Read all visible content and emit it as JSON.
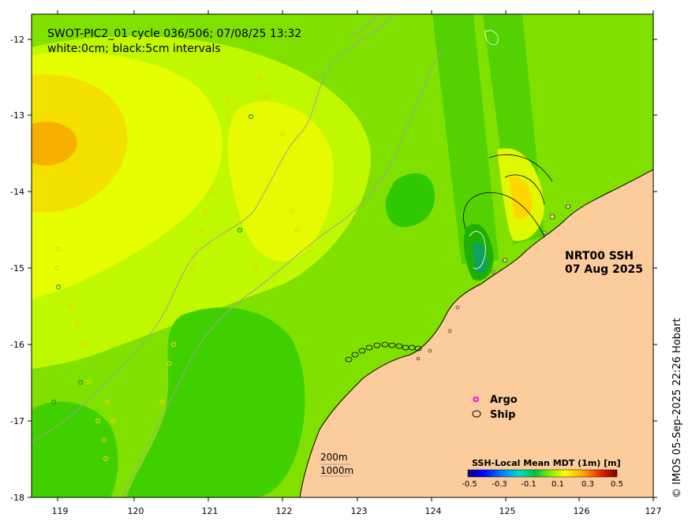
{
  "title": {
    "line1": "SWOT-PIC2_01 cycle 036/506; 07/08/25 13:32",
    "line2": "white:0cm; black:5cm intervals"
  },
  "product": {
    "line1": "NRT00 SSH",
    "line2": "07 Aug 2025"
  },
  "credit": "© IMOS 05-Sep-2025 22:26 Hobart",
  "axes": {
    "x_ticks": [
      "119",
      "120",
      "121",
      "122",
      "123",
      "124",
      "125",
      "126",
      "127"
    ],
    "y_ticks": [
      "-12",
      "-13",
      "-14",
      "-15",
      "-16",
      "-17",
      "-18"
    ]
  },
  "legend": {
    "argo_label": "Argo",
    "ship_label": "Ship",
    "argo_symbol": "o"
  },
  "isobaths": {
    "shallow_label": "200m",
    "deep_label": "1000m"
  },
  "colorbar": {
    "title": "SSH-Local Mean MDT (1m) [m]",
    "ticks": [
      "-0.5",
      "-0.3",
      "-0.1",
      "0.1",
      "0.3",
      "0.5"
    ],
    "colors": [
      "#000080",
      "#0000ff",
      "#0090ff",
      "#00e0e0",
      "#00c060",
      "#40e000",
      "#c0ff00",
      "#ffff00",
      "#ffc000",
      "#ff8000",
      "#e02000",
      "#800000"
    ]
  },
  "colors": {
    "land": "#fccc9c",
    "argo": "#ff00ff"
  }
}
